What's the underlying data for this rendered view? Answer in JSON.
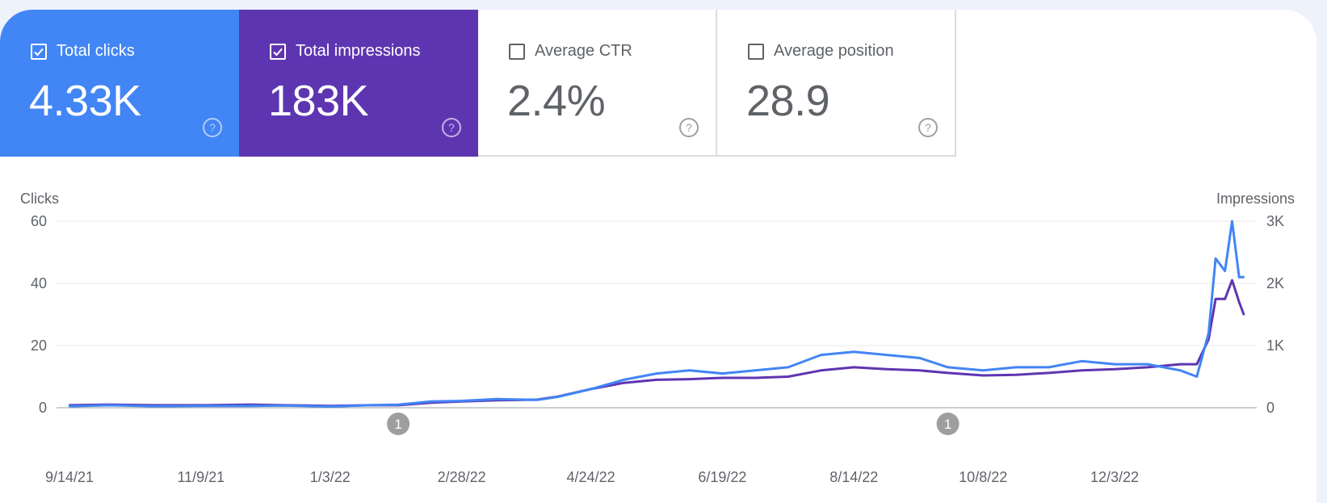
{
  "cards": [
    {
      "label": "Total clicks",
      "value": "4.33K",
      "checked": true,
      "color": "#4285f4"
    },
    {
      "label": "Total impressions",
      "value": "183K",
      "checked": true,
      "color": "#5e35b1"
    },
    {
      "label": "Average CTR",
      "value": "2.4%",
      "checked": false,
      "color": "#ffffff"
    },
    {
      "label": "Average position",
      "value": "28.9",
      "checked": false,
      "color": "#ffffff"
    }
  ],
  "icons": {
    "checkbox": "checkbox-icon",
    "help": "help-circle-icon",
    "annotation": "annotation-marker-icon"
  },
  "chart_data": {
    "type": "line",
    "y_left_label": "Clicks",
    "y_right_label": "Impressions",
    "y_left_ticks": [
      "0",
      "20",
      "40",
      "60"
    ],
    "y_right_ticks": [
      "0",
      "1K",
      "2K",
      "3K"
    ],
    "ylim_left": [
      0,
      60
    ],
    "ylim_right": [
      0,
      3000
    ],
    "x_tick_labels": [
      "9/14/21",
      "11/9/21",
      "1/3/22",
      "2/28/22",
      "4/24/22",
      "6/19/22",
      "8/14/22",
      "10/8/22",
      "12/3/22"
    ],
    "x_range": [
      "9/14/21",
      "1/27/23"
    ],
    "annotations": [
      {
        "label": "1",
        "date": "2/1/22"
      },
      {
        "label": "1",
        "date": "9/23/22"
      }
    ],
    "series": [
      {
        "axis": "left",
        "color": "#4285f4",
        "points": [
          [
            "9/14/21",
            0.5
          ],
          [
            "10/1/21",
            0.8
          ],
          [
            "10/20/21",
            0.5
          ],
          [
            "11/9/21",
            0.6
          ],
          [
            "11/30/21",
            0.6
          ],
          [
            "12/15/21",
            0.7
          ],
          [
            "1/3/22",
            0.4
          ],
          [
            "1/20/22",
            0.8
          ],
          [
            "2/1/22",
            1
          ],
          [
            "2/15/22",
            2
          ],
          [
            "2/28/22",
            2.2
          ],
          [
            "3/15/22",
            2.8
          ],
          [
            "4/1/22",
            2.5
          ],
          [
            "4/10/22",
            3.5
          ],
          [
            "4/24/22",
            6
          ],
          [
            "5/8/22",
            9
          ],
          [
            "5/22/22",
            11
          ],
          [
            "6/5/22",
            12
          ],
          [
            "6/19/22",
            11
          ],
          [
            "7/3/22",
            12
          ],
          [
            "7/17/22",
            13
          ],
          [
            "7/31/22",
            17
          ],
          [
            "8/14/22",
            18
          ],
          [
            "8/28/22",
            17
          ],
          [
            "9/11/22",
            16
          ],
          [
            "9/23/22",
            13
          ],
          [
            "10/8/22",
            12
          ],
          [
            "10/22/22",
            13
          ],
          [
            "11/5/22",
            13
          ],
          [
            "11/19/22",
            15
          ],
          [
            "12/3/22",
            14
          ],
          [
            "12/17/22",
            14
          ],
          [
            "12/31/22",
            12
          ],
          [
            "1/7/23",
            10
          ],
          [
            "1/12/23",
            24
          ],
          [
            "1/15/23",
            48
          ],
          [
            "1/19/23",
            44
          ],
          [
            "1/22/23",
            60
          ],
          [
            "1/25/23",
            42
          ],
          [
            "1/27/23",
            42
          ]
        ]
      },
      {
        "axis": "right",
        "color": "#5e35b1",
        "points": [
          [
            "9/14/21",
            40
          ],
          [
            "10/1/21",
            50
          ],
          [
            "10/20/21",
            40
          ],
          [
            "11/9/21",
            40
          ],
          [
            "11/30/21",
            50
          ],
          [
            "12/15/21",
            40
          ],
          [
            "1/3/22",
            30
          ],
          [
            "1/20/22",
            40
          ],
          [
            "2/1/22",
            40
          ],
          [
            "2/15/22",
            80
          ],
          [
            "2/28/22",
            100
          ],
          [
            "3/15/22",
            120
          ],
          [
            "4/1/22",
            130
          ],
          [
            "4/10/22",
            180
          ],
          [
            "4/24/22",
            300
          ],
          [
            "5/8/22",
            400
          ],
          [
            "5/22/22",
            450
          ],
          [
            "6/5/22",
            460
          ],
          [
            "6/19/22",
            480
          ],
          [
            "7/3/22",
            480
          ],
          [
            "7/17/22",
            500
          ],
          [
            "7/31/22",
            600
          ],
          [
            "8/14/22",
            650
          ],
          [
            "8/28/22",
            620
          ],
          [
            "9/11/22",
            600
          ],
          [
            "9/23/22",
            560
          ],
          [
            "10/8/22",
            520
          ],
          [
            "10/22/22",
            530
          ],
          [
            "11/5/22",
            560
          ],
          [
            "11/19/22",
            600
          ],
          [
            "12/3/22",
            620
          ],
          [
            "12/17/22",
            650
          ],
          [
            "12/31/22",
            700
          ],
          [
            "1/7/23",
            700
          ],
          [
            "1/12/23",
            1100
          ],
          [
            "1/15/23",
            1750
          ],
          [
            "1/19/23",
            1750
          ],
          [
            "1/22/23",
            2050
          ],
          [
            "1/25/23",
            1700
          ],
          [
            "1/27/23",
            1500
          ]
        ]
      }
    ]
  }
}
